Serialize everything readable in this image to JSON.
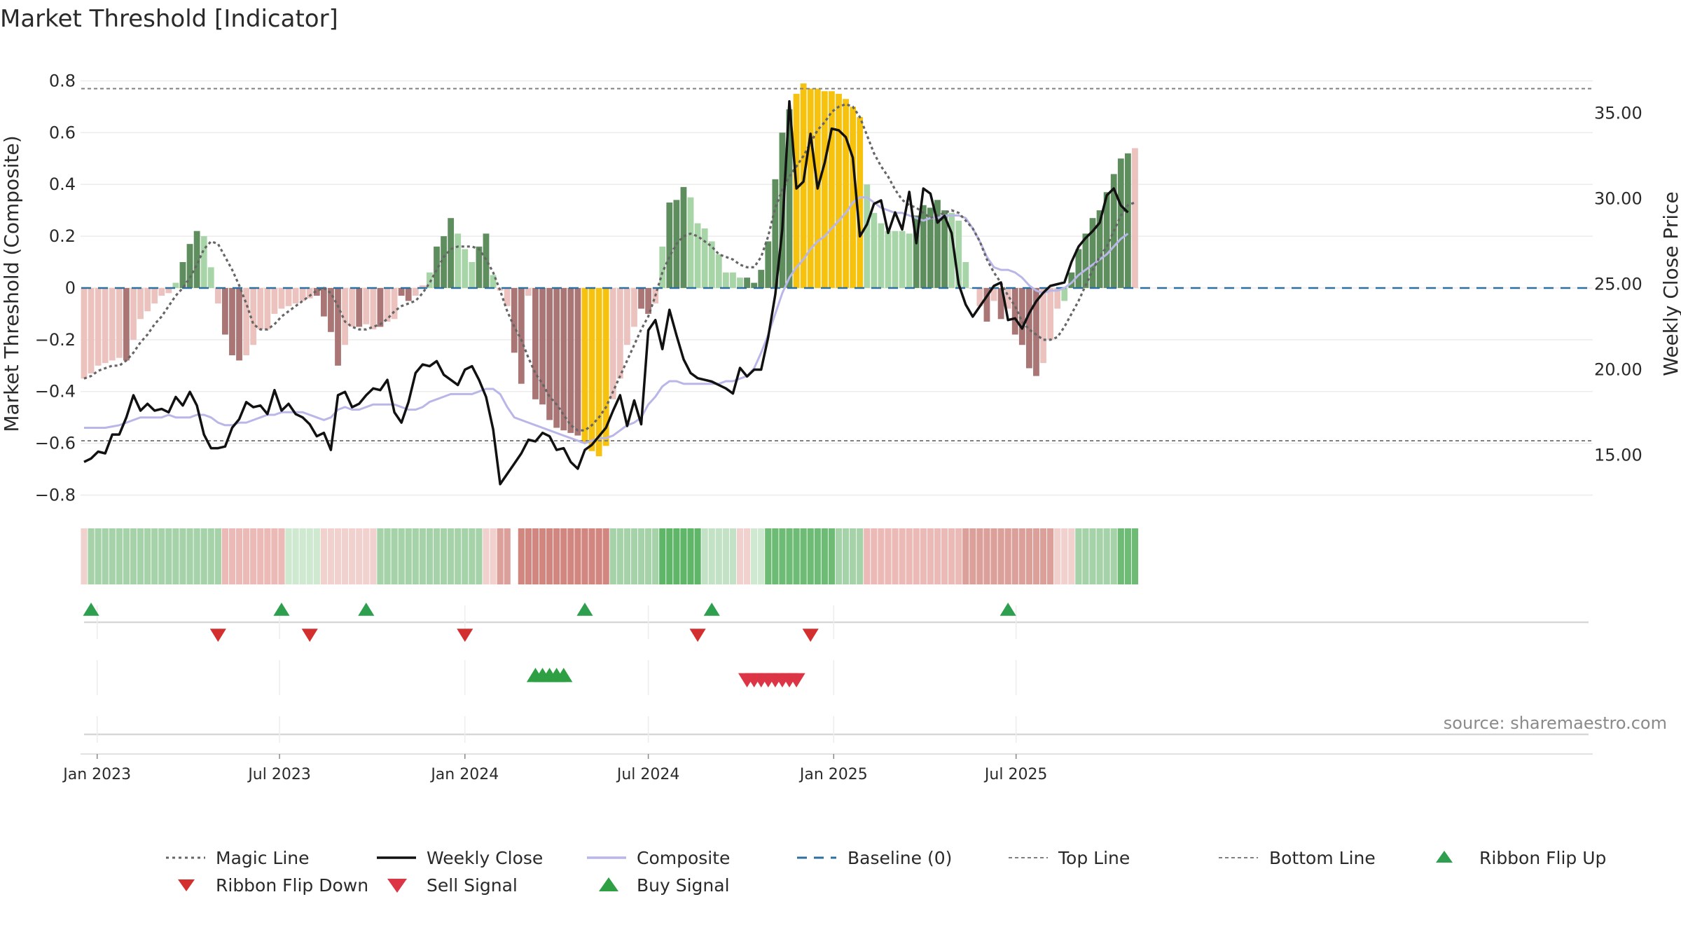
{
  "title": "Market Threshold [Indicator]",
  "source_note": "source: sharemaestro.com",
  "colors": {
    "magic": "#666666",
    "close": "#111111",
    "composite": "#b9b6e8",
    "baseline": "#2e6f9e",
    "topline": "#808080",
    "bottomline": "#808080",
    "buy": "#2ea043",
    "sell": "#dc3545",
    "flip_up": "#2e9e4f",
    "flip_down": "#d32f2f",
    "bar_pos_dark": "#5e8d5e",
    "bar_pos_light": "#a8d5a8",
    "bar_neg_dark": "#a97575",
    "bar_neg_light": "#ecc2be",
    "bar_extreme": "#f6c20e"
  },
  "chart_data": {
    "type": "bar",
    "title": "Market Threshold [Indicator]",
    "ylabel": "Market Threshold (Composite)",
    "y2label": "Weekly Close Price",
    "ylim": [
      -0.85,
      0.82
    ],
    "y2lim": [
      11.9,
      37.2
    ],
    "yticks": [
      "0.8",
      "0.6",
      "0.4",
      "0.2",
      "0",
      "−0.2",
      "−0.4",
      "−0.6",
      "−0.8"
    ],
    "ytick_values": [
      0.8,
      0.6,
      0.4,
      0.2,
      0,
      -0.2,
      -0.4,
      -0.6,
      -0.8
    ],
    "y2ticks": [
      "35.00",
      "30.00",
      "25.00",
      "20.00",
      "15.00"
    ],
    "y2tick_values": [
      35,
      30,
      25,
      20,
      15
    ],
    "x_start": "2022-12-19",
    "xticks": [
      {
        "label": "Jan 2023",
        "date": "2023-01-01"
      },
      {
        "label": "Jul 2023",
        "date": "2023-07-01"
      },
      {
        "label": "Jan 2024",
        "date": "2024-01-01"
      },
      {
        "label": "Jul 2024",
        "date": "2024-07-01"
      },
      {
        "label": "Jan 2025",
        "date": "2025-01-01"
      },
      {
        "label": "Jul 2025",
        "date": "2025-07-01"
      }
    ],
    "top_line": 0.77,
    "bottom_line": -0.59,
    "baseline": 0,
    "bars": [
      -0.35,
      -0.33,
      -0.3,
      -0.29,
      -0.28,
      -0.27,
      -0.28,
      -0.2,
      -0.12,
      -0.09,
      -0.06,
      -0.03,
      -0.02,
      0.02,
      0.1,
      0.17,
      0.22,
      0.2,
      0.08,
      -0.06,
      -0.18,
      -0.26,
      -0.28,
      -0.26,
      -0.22,
      -0.16,
      -0.16,
      -0.1,
      -0.08,
      -0.07,
      -0.06,
      -0.05,
      -0.04,
      -0.03,
      -0.11,
      -0.17,
      -0.3,
      -0.22,
      -0.15,
      -0.15,
      -0.14,
      -0.16,
      -0.15,
      -0.13,
      -0.12,
      -0.03,
      -0.05,
      -0.03,
      0.01,
      0.06,
      0.16,
      0.2,
      0.27,
      0.21,
      0.15,
      0.1,
      0.16,
      0.21,
      0.05,
      -0.01,
      -0.07,
      -0.25,
      -0.37,
      -0.03,
      -0.43,
      -0.45,
      -0.51,
      -0.54,
      -0.55,
      -0.56,
      -0.57,
      -0.6,
      -0.63,
      -0.65,
      -0.61,
      -0.43,
      -0.35,
      -0.22,
      -0.15,
      -0.08,
      -0.1,
      -0.06,
      0.16,
      0.33,
      0.34,
      0.39,
      0.35,
      0.25,
      0.23,
      0.18,
      0.13,
      0.06,
      0.06,
      0.04,
      0.04,
      0.02,
      0.07,
      0.18,
      0.42,
      0.6,
      0.69,
      0.75,
      0.79,
      0.77,
      0.77,
      0.76,
      0.76,
      0.75,
      0.73,
      0.7,
      0.66,
      0.4,
      0.29,
      0.25,
      0.22,
      0.22,
      0.22,
      0.21,
      0.28,
      0.32,
      0.31,
      0.34,
      0.3,
      0.29,
      0.26,
      0.1,
      0.0,
      -0.07,
      -0.13,
      -0.05,
      -0.12,
      -0.08,
      -0.18,
      -0.22,
      -0.31,
      -0.34,
      -0.29,
      -0.2,
      -0.08,
      -0.05,
      0.06,
      0.15,
      0.21,
      0.27,
      0.3,
      0.37,
      0.44,
      0.5,
      0.52,
      0.54
    ],
    "bar_classes": [
      "nl",
      "nl",
      "nl",
      "nl",
      "nl",
      "nl",
      "nd",
      "nl",
      "nl",
      "nl",
      "nl",
      "nl",
      "nl",
      "pl",
      "pd",
      "pd",
      "pd",
      "pl",
      "pl",
      "nl",
      "nd",
      "nd",
      "nd",
      "nl",
      "nl",
      "nl",
      "nl",
      "nl",
      "nl",
      "nl",
      "nl",
      "nl",
      "nl",
      "nd",
      "nd",
      "nd",
      "nd",
      "nl",
      "nl",
      "nd",
      "nl",
      "nl",
      "nd",
      "nl",
      "nl",
      "nd",
      "nd",
      "nl",
      "nl",
      "pl",
      "pd",
      "pd",
      "pd",
      "pl",
      "pl",
      "pl",
      "pd",
      "pd",
      "pl",
      "nl",
      "nl",
      "nd",
      "nd",
      "nl",
      "nd",
      "nd",
      "nd",
      "nd",
      "nd",
      "nd",
      "nd",
      "ex",
      "ex",
      "ex",
      "ex",
      "nl",
      "nl",
      "nl",
      "nl",
      "nd",
      "nd",
      "nl",
      "pl",
      "pd",
      "pd",
      "pd",
      "pl",
      "pl",
      "pl",
      "pl",
      "pl",
      "pl",
      "pl",
      "pl",
      "pd",
      "pd",
      "pd",
      "pd",
      "pd",
      "pd",
      "pd",
      "ex",
      "ex",
      "ex",
      "ex",
      "ex",
      "ex",
      "ex",
      "ex",
      "ex",
      "ex",
      "pl",
      "pl",
      "pl",
      "pl",
      "pl",
      "pl",
      "pl",
      "pd",
      "pd",
      "pd",
      "pd",
      "pd",
      "pl",
      "pl",
      "pl",
      "pl",
      "nl",
      "nd",
      "nl",
      "nd",
      "nl",
      "nd",
      "nd",
      "nd",
      "nd",
      "nl",
      "nl",
      "nl",
      "pl",
      "pd",
      "pd",
      "pd",
      "pd",
      "pd",
      "pd",
      "pd",
      "pd",
      "pd"
    ],
    "weekly_close": [
      14.6,
      14.8,
      15.2,
      15.1,
      16.2,
      16.2,
      17.2,
      18.5,
      17.6,
      18.0,
      17.6,
      17.7,
      17.5,
      18.4,
      17.9,
      18.7,
      17.9,
      16.2,
      15.4,
      15.4,
      15.5,
      16.6,
      17.1,
      18.1,
      17.8,
      17.9,
      17.4,
      18.8,
      17.6,
      18.0,
      17.4,
      17.2,
      16.8,
      16.1,
      16.3,
      15.3,
      18.5,
      18.7,
      17.8,
      18.0,
      18.5,
      18.9,
      18.8,
      19.4,
      17.5,
      16.9,
      18.1,
      19.8,
      20.3,
      20.2,
      20.5,
      19.7,
      19.4,
      19.1,
      20.0,
      20.2,
      19.4,
      18.4,
      16.5,
      13.3,
      13.9,
      14.5,
      15.1,
      15.9,
      15.8,
      16.3,
      16.1,
      15.3,
      15.4,
      14.6,
      14.2,
      15.3,
      15.6,
      16.1,
      16.6,
      17.6,
      18.5,
      16.7,
      18.2,
      16.8,
      22.3,
      22.9,
      21.2,
      23.5,
      22.0,
      20.6,
      19.8,
      19.5,
      19.4,
      19.3,
      19.1,
      18.9,
      18.6,
      20.1,
      19.6,
      20.0,
      20.0,
      21.9,
      24.4,
      28.2,
      35.7,
      30.6,
      31.0,
      33.8,
      30.6,
      32.1,
      34.1,
      34.0,
      33.6,
      32.4,
      27.8,
      28.5,
      29.7,
      29.9,
      28.0,
      29.2,
      28.2,
      30.4,
      27.4,
      30.6,
      30.3,
      28.6,
      29.0,
      28.0,
      25.0,
      23.8,
      23.1,
      23.7,
      24.3,
      24.9,
      25.1,
      22.9,
      23.0,
      22.4,
      23.3,
      24.0,
      24.5,
      24.9,
      25.0,
      25.1,
      26.3,
      27.2,
      27.7,
      28.1,
      28.6,
      30.2,
      30.6,
      29.6,
      29.2
    ],
    "composite": [
      -0.54,
      -0.54,
      -0.54,
      -0.54,
      -0.535,
      -0.53,
      -0.52,
      -0.51,
      -0.5,
      -0.5,
      -0.5,
      -0.5,
      -0.49,
      -0.5,
      -0.5,
      -0.5,
      -0.49,
      -0.49,
      -0.5,
      -0.52,
      -0.53,
      -0.53,
      -0.52,
      -0.52,
      -0.51,
      -0.5,
      -0.49,
      -0.49,
      -0.48,
      -0.48,
      -0.48,
      -0.48,
      -0.49,
      -0.5,
      -0.51,
      -0.5,
      -0.47,
      -0.46,
      -0.47,
      -0.47,
      -0.46,
      -0.45,
      -0.45,
      -0.45,
      -0.45,
      -0.46,
      -0.47,
      -0.47,
      -0.46,
      -0.44,
      -0.43,
      -0.42,
      -0.41,
      -0.41,
      -0.41,
      -0.41,
      -0.4,
      -0.39,
      -0.39,
      -0.41,
      -0.46,
      -0.5,
      -0.51,
      -0.52,
      -0.53,
      -0.54,
      -0.55,
      -0.56,
      -0.57,
      -0.58,
      -0.59,
      -0.6,
      -0.59,
      -0.58,
      -0.58,
      -0.57,
      -0.55,
      -0.53,
      -0.52,
      -0.5,
      -0.45,
      -0.42,
      -0.38,
      -0.36,
      -0.36,
      -0.37,
      -0.37,
      -0.37,
      -0.37,
      -0.37,
      -0.37,
      -0.36,
      -0.36,
      -0.35,
      -0.34,
      -0.31,
      -0.25,
      -0.18,
      -0.1,
      -0.02,
      0.04,
      0.08,
      0.11,
      0.15,
      0.18,
      0.2,
      0.23,
      0.26,
      0.29,
      0.33,
      0.35,
      0.35,
      0.33,
      0.31,
      0.3,
      0.29,
      0.29,
      0.28,
      0.27,
      0.26,
      0.27,
      0.27,
      0.28,
      0.28,
      0.28,
      0.27,
      0.23,
      0.18,
      0.12,
      0.08,
      0.07,
      0.07,
      0.06,
      0.04,
      0.01,
      -0.01,
      -0.02,
      -0.01,
      -0.01,
      0.0,
      0.02,
      0.05,
      0.07,
      0.09,
      0.11,
      0.13,
      0.16,
      0.19,
      0.21
    ],
    "magic_line": [
      -0.35,
      -0.34,
      -0.32,
      -0.31,
      -0.3,
      -0.3,
      -0.28,
      -0.25,
      -0.21,
      -0.18,
      -0.14,
      -0.11,
      -0.07,
      -0.03,
      0.0,
      0.04,
      0.09,
      0.15,
      0.18,
      0.17,
      0.12,
      0.07,
      0.01,
      -0.06,
      -0.14,
      -0.16,
      -0.16,
      -0.14,
      -0.11,
      -0.09,
      -0.07,
      -0.05,
      -0.03,
      -0.01,
      0.0,
      -0.02,
      -0.07,
      -0.13,
      -0.15,
      -0.16,
      -0.16,
      -0.15,
      -0.14,
      -0.12,
      -0.09,
      -0.07,
      -0.06,
      -0.05,
      -0.02,
      0.02,
      0.07,
      0.12,
      0.15,
      0.16,
      0.16,
      0.16,
      0.15,
      0.11,
      0.06,
      -0.01,
      -0.09,
      -0.15,
      -0.2,
      -0.27,
      -0.33,
      -0.37,
      -0.42,
      -0.45,
      -0.49,
      -0.53,
      -0.55,
      -0.55,
      -0.53,
      -0.5,
      -0.46,
      -0.4,
      -0.34,
      -0.28,
      -0.22,
      -0.16,
      -0.11,
      -0.03,
      0.06,
      0.12,
      0.17,
      0.2,
      0.21,
      0.2,
      0.18,
      0.16,
      0.13,
      0.12,
      0.11,
      0.09,
      0.08,
      0.08,
      0.12,
      0.2,
      0.31,
      0.38,
      0.43,
      0.47,
      0.51,
      0.56,
      0.61,
      0.64,
      0.68,
      0.7,
      0.71,
      0.7,
      0.66,
      0.59,
      0.52,
      0.47,
      0.43,
      0.38,
      0.34,
      0.32,
      0.31,
      0.29,
      0.27,
      0.28,
      0.29,
      0.3,
      0.29,
      0.26,
      0.23,
      0.18,
      0.11,
      0.06,
      0.02,
      -0.03,
      -0.07,
      -0.13,
      -0.16,
      -0.18,
      -0.2,
      -0.2,
      -0.19,
      -0.15,
      -0.1,
      -0.05,
      0.01,
      0.07,
      0.12,
      0.16,
      0.22,
      0.28,
      0.32,
      0.33
    ],
    "ribbon": [
      {
        "start": 0,
        "end": 1,
        "color": "#f1d1ce"
      },
      {
        "start": 1,
        "end": 20,
        "color": "#a6d2a9"
      },
      {
        "start": 20,
        "end": 29,
        "color": "#ebbab6"
      },
      {
        "start": 29,
        "end": 34,
        "color": "#cfe8d0"
      },
      {
        "start": 34,
        "end": 42,
        "color": "#f1d1ce"
      },
      {
        "start": 42,
        "end": 57,
        "color": "#a6d2a9"
      },
      {
        "start": 57,
        "end": 59,
        "color": "#f1d1ce"
      },
      {
        "start": 59,
        "end": 61,
        "color": "#dca09b"
      },
      {
        "start": 62,
        "end": 75,
        "color": "#d18680"
      },
      {
        "start": 75,
        "end": 82,
        "color": "#a6d2a9"
      },
      {
        "start": 82,
        "end": 88,
        "color": "#5fb669"
      },
      {
        "start": 88,
        "end": 93,
        "color": "#c3e1c5"
      },
      {
        "start": 93,
        "end": 95,
        "color": "#f1d1ce"
      },
      {
        "start": 95,
        "end": 97,
        "color": "#cfe8d0"
      },
      {
        "start": 97,
        "end": 107,
        "color": "#6dbb75"
      },
      {
        "start": 107,
        "end": 111,
        "color": "#a6d2a9"
      },
      {
        "start": 111,
        "end": 125,
        "color": "#ebbab6"
      },
      {
        "start": 125,
        "end": 138,
        "color": "#dca09b"
      },
      {
        "start": 138,
        "end": 141,
        "color": "#f1d1ce"
      },
      {
        "start": 141,
        "end": 147,
        "color": "#a6d2a9"
      },
      {
        "start": 147,
        "end": 150,
        "color": "#6dbb75"
      }
    ],
    "ribbon_flip_up_weeks": [
      1,
      28,
      40,
      71,
      89,
      131
    ],
    "ribbon_flip_down_weeks": [
      19,
      32,
      54,
      87,
      103
    ],
    "buy_signal_weeks": [
      64,
      65,
      66,
      67,
      68
    ],
    "sell_signal_weeks": [
      94,
      95,
      96,
      97,
      98,
      99,
      100,
      101
    ]
  },
  "legend": {
    "magic": "Magic Line",
    "close": "Weekly Close",
    "composite": "Composite",
    "baseline": "Baseline (0)",
    "top": "Top Line",
    "bottom": "Bottom Line",
    "flip_up": "Ribbon Flip Up",
    "flip_down": "Ribbon Flip Down",
    "sell": "Sell Signal",
    "buy": "Buy Signal"
  }
}
